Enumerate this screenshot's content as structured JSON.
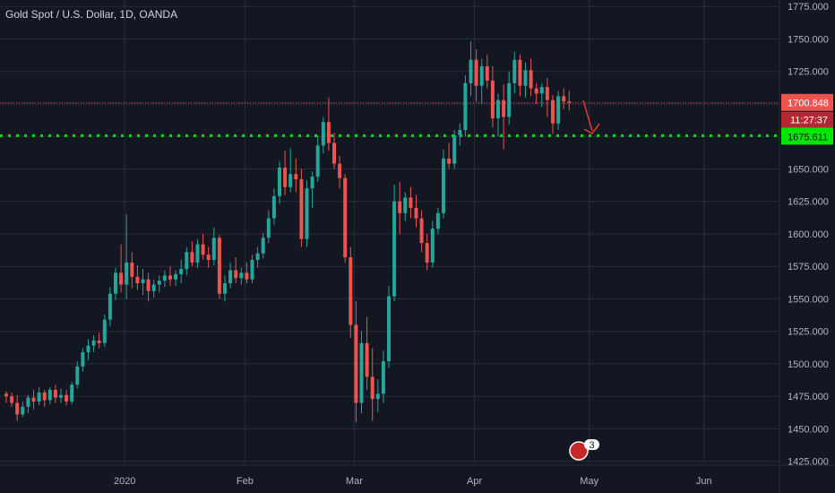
{
  "header": {
    "symbol_title": "Gold Spot / U.S. Dollar, 1D, OANDA"
  },
  "price_tags": {
    "last_price": "1700.848",
    "countdown": "11:27:37",
    "support": "1675.611"
  },
  "event_badge": {
    "count": "3"
  },
  "colors": {
    "up": "#26a69a",
    "down": "#ef5350",
    "support_line": "#00e600",
    "arrow": "#e53935"
  },
  "chart_data": {
    "type": "candlestick",
    "y_ticks": [
      "1425.000",
      "1450.000",
      "1475.000",
      "1500.000",
      "1525.000",
      "1550.000",
      "1575.000",
      "1600.000",
      "1625.000",
      "1650.000",
      "1675.000",
      "1700.000",
      "1725.000",
      "1750.000",
      "1775.000"
    ],
    "ylim": [
      1422,
      1780
    ],
    "x_ticks": [
      {
        "label": "2020",
        "bar": 22
      },
      {
        "label": "Feb",
        "bar": 44
      },
      {
        "label": "Mar",
        "bar": 64
      },
      {
        "label": "Apr",
        "bar": 86
      },
      {
        "label": "May",
        "bar": 107
      },
      {
        "label": "Jun",
        "bar": 128
      }
    ],
    "support_level": 1675.611,
    "last_price": 1700.848,
    "candles": [
      [
        1477,
        1479,
        1470,
        1475
      ],
      [
        1475,
        1478,
        1467,
        1470
      ],
      [
        1470,
        1476,
        1456,
        1461
      ],
      [
        1461,
        1471,
        1459,
        1467
      ],
      [
        1467,
        1476,
        1462,
        1474
      ],
      [
        1474,
        1480,
        1465,
        1471
      ],
      [
        1471,
        1482,
        1468,
        1478
      ],
      [
        1478,
        1480,
        1467,
        1472
      ],
      [
        1472,
        1482,
        1469,
        1480
      ],
      [
        1480,
        1484,
        1470,
        1474
      ],
      [
        1474,
        1481,
        1470,
        1476
      ],
      [
        1476,
        1480,
        1468,
        1471
      ],
      [
        1471,
        1486,
        1469,
        1484
      ],
      [
        1484,
        1502,
        1481,
        1498
      ],
      [
        1498,
        1512,
        1494,
        1509
      ],
      [
        1509,
        1519,
        1503,
        1514
      ],
      [
        1514,
        1522,
        1509,
        1518
      ],
      [
        1518,
        1524,
        1512,
        1516
      ],
      [
        1516,
        1538,
        1513,
        1534
      ],
      [
        1534,
        1559,
        1529,
        1554
      ],
      [
        1554,
        1574,
        1549,
        1570
      ],
      [
        1570,
        1592,
        1555,
        1561
      ],
      [
        1561,
        1615,
        1550,
        1578
      ],
      [
        1578,
        1586,
        1558,
        1567
      ],
      [
        1567,
        1576,
        1557,
        1562
      ],
      [
        1562,
        1573,
        1553,
        1565
      ],
      [
        1565,
        1570,
        1548,
        1556
      ],
      [
        1556,
        1565,
        1551,
        1561
      ],
      [
        1561,
        1568,
        1555,
        1564
      ],
      [
        1564,
        1572,
        1559,
        1568
      ],
      [
        1568,
        1575,
        1560,
        1565
      ],
      [
        1565,
        1572,
        1560,
        1569
      ],
      [
        1569,
        1580,
        1562,
        1573
      ],
      [
        1573,
        1590,
        1568,
        1586
      ],
      [
        1586,
        1594,
        1575,
        1578
      ],
      [
        1578,
        1596,
        1574,
        1592
      ],
      [
        1592,
        1600,
        1580,
        1584
      ],
      [
        1584,
        1590,
        1574,
        1580
      ],
      [
        1580,
        1605,
        1576,
        1597
      ],
      [
        1597,
        1599,
        1550,
        1554
      ],
      [
        1554,
        1568,
        1548,
        1562
      ],
      [
        1562,
        1578,
        1558,
        1572
      ],
      [
        1572,
        1582,
        1562,
        1566
      ],
      [
        1566,
        1574,
        1561,
        1570
      ],
      [
        1570,
        1578,
        1562,
        1565
      ],
      [
        1565,
        1584,
        1562,
        1580
      ],
      [
        1580,
        1590,
        1574,
        1585
      ],
      [
        1585,
        1601,
        1581,
        1597
      ],
      [
        1597,
        1618,
        1593,
        1612
      ],
      [
        1612,
        1635,
        1607,
        1629
      ],
      [
        1629,
        1656,
        1623,
        1651
      ],
      [
        1651,
        1664,
        1630,
        1636
      ],
      [
        1636,
        1666,
        1632,
        1646
      ],
      [
        1646,
        1658,
        1632,
        1642
      ],
      [
        1642,
        1650,
        1590,
        1596
      ],
      [
        1596,
        1641,
        1590,
        1635
      ],
      [
        1635,
        1648,
        1620,
        1644
      ],
      [
        1644,
        1676,
        1640,
        1668
      ],
      [
        1668,
        1690,
        1662,
        1686
      ],
      [
        1686,
        1705,
        1664,
        1670
      ],
      [
        1670,
        1678,
        1650,
        1654
      ],
      [
        1654,
        1660,
        1635,
        1643
      ],
      [
        1643,
        1646,
        1578,
        1582
      ],
      [
        1582,
        1590,
        1520,
        1530
      ],
      [
        1530,
        1548,
        1455,
        1470
      ],
      [
        1470,
        1525,
        1462,
        1516
      ],
      [
        1516,
        1536,
        1480,
        1490
      ],
      [
        1490,
        1512,
        1456,
        1473
      ],
      [
        1473,
        1488,
        1463,
        1477
      ],
      [
        1477,
        1510,
        1470,
        1502
      ],
      [
        1502,
        1560,
        1497,
        1552
      ],
      [
        1552,
        1638,
        1548,
        1625
      ],
      [
        1625,
        1640,
        1600,
        1616
      ],
      [
        1616,
        1632,
        1610,
        1628
      ],
      [
        1628,
        1636,
        1612,
        1620
      ],
      [
        1620,
        1630,
        1605,
        1612
      ],
      [
        1612,
        1618,
        1586,
        1593
      ],
      [
        1593,
        1600,
        1572,
        1578
      ],
      [
        1578,
        1610,
        1574,
        1604
      ],
      [
        1604,
        1620,
        1600,
        1616
      ],
      [
        1616,
        1665,
        1612,
        1658
      ],
      [
        1658,
        1670,
        1650,
        1654
      ],
      [
        1654,
        1680,
        1650,
        1676
      ],
      [
        1676,
        1685,
        1668,
        1680
      ],
      [
        1680,
        1722,
        1675,
        1716
      ],
      [
        1716,
        1748,
        1706,
        1734
      ],
      [
        1734,
        1742,
        1702,
        1714
      ],
      [
        1714,
        1735,
        1700,
        1729
      ],
      [
        1729,
        1738,
        1712,
        1718
      ],
      [
        1718,
        1729,
        1682,
        1689
      ],
      [
        1689,
        1708,
        1675,
        1703
      ],
      [
        1703,
        1715,
        1665,
        1690
      ],
      [
        1690,
        1725,
        1684,
        1716
      ],
      [
        1716,
        1740,
        1708,
        1734
      ],
      [
        1734,
        1738,
        1706,
        1714
      ],
      [
        1714,
        1732,
        1705,
        1726
      ],
      [
        1726,
        1735,
        1706,
        1712
      ],
      [
        1712,
        1716,
        1700,
        1708
      ],
      [
        1708,
        1716,
        1698,
        1713
      ],
      [
        1713,
        1720,
        1690,
        1703
      ],
      [
        1703,
        1707,
        1677,
        1685
      ],
      [
        1685,
        1710,
        1680,
        1706
      ],
      [
        1706,
        1712,
        1696,
        1702
      ],
      [
        1702,
        1710,
        1695,
        1701
      ]
    ]
  }
}
